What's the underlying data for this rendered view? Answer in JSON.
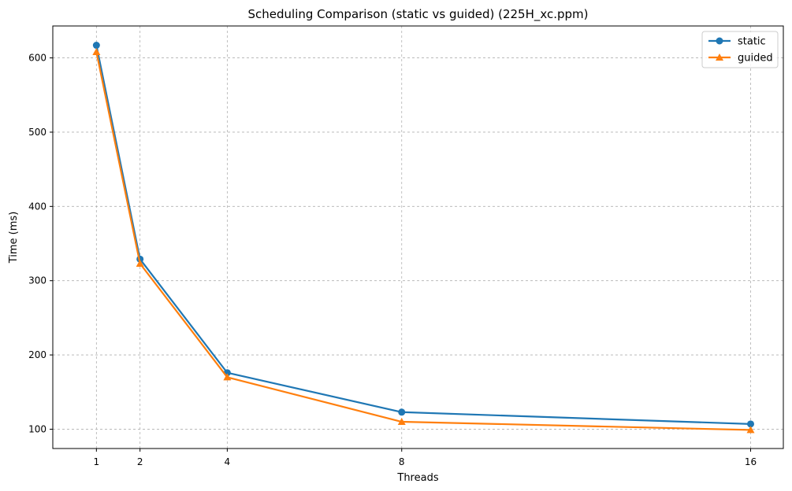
{
  "chart_data": {
    "type": "line",
    "title": "Scheduling Comparison (static vs guided) (225H_xc.ppm)",
    "xlabel": "Threads",
    "ylabel": "Time (ms)",
    "x": [
      1,
      2,
      4,
      8,
      16
    ],
    "x_tick_labels": [
      "1",
      "2",
      "4",
      "8",
      "16"
    ],
    "xlim": [
      0.0,
      16.75
    ],
    "ylim": [
      74,
      643
    ],
    "y_ticks": [
      100,
      200,
      300,
      400,
      500,
      600
    ],
    "y_tick_labels": [
      "100",
      "200",
      "300",
      "400",
      "500",
      "600"
    ],
    "grid": true,
    "legend_position": "top-right",
    "series": [
      {
        "name": "static",
        "values": [
          617,
          329,
          176,
          123,
          107
        ],
        "color": "#1f77b4",
        "marker": "circle"
      },
      {
        "name": "guided",
        "values": [
          608,
          323,
          170,
          110,
          99
        ],
        "color": "#ff7f0e",
        "marker": "triangle"
      }
    ]
  }
}
